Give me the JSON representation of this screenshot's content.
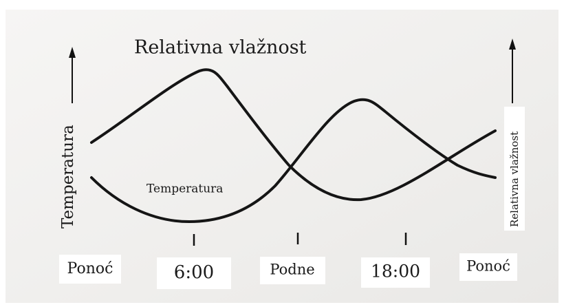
{
  "title": "Relativna vlažnost",
  "y_axis_left": "Temperatura",
  "y_axis_right": "Relativna vlažnost",
  "curve_label": "Temperatura",
  "x_labels": [
    "Ponoć",
    "6:00",
    "Podne",
    "18:00",
    "Ponoć"
  ]
}
